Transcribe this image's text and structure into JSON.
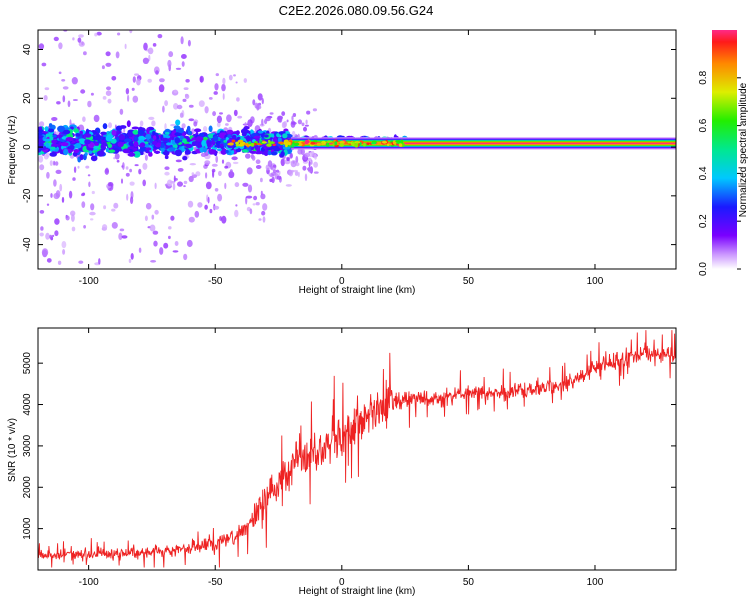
{
  "title": "C2E2.2026.080.09.56.G24",
  "colors": {
    "snr_line": "#ee2222",
    "band_core": "#ff2a6a",
    "axis": "#000000"
  },
  "chart_data": [
    {
      "type": "heatmap",
      "xlabel": "Height of straight line (km)",
      "ylabel": "Frequency (Hz)",
      "xlim": [
        -120,
        132
      ],
      "ylim": [
        -50,
        48
      ],
      "xticks": [
        -100,
        -50,
        0,
        50,
        100
      ],
      "yticks": [
        -40,
        -20,
        0,
        20,
        40
      ],
      "xtick_labels": [
        "-100",
        "-50",
        "0",
        "50",
        "100"
      ],
      "ytick_labels": [
        "-40",
        "-20",
        "0",
        "20",
        "40"
      ],
      "band_center_hz": 1.5,
      "band_halfwidth_hz": 2,
      "note": "Spectral band narrows and stabilizes near 1.5 Hz above ~-20 km; broad noisy scatter below."
    },
    {
      "type": "colorbar",
      "label": "Normalized spectral amplitude",
      "range": [
        0,
        1
      ],
      "ticks": [
        0.0,
        0.2,
        0.4,
        0.6,
        0.8
      ],
      "tick_labels": [
        "0.0",
        "0.2",
        "0.4",
        "0.6",
        "0.8"
      ]
    },
    {
      "type": "line",
      "xlabel": "Height of straight line (km)",
      "ylabel": "SNR (10 * v/v)",
      "xlim": [
        -120,
        132
      ],
      "ylim": [
        0,
        5850
      ],
      "xticks": [
        -100,
        -50,
        0,
        50,
        100
      ],
      "yticks": [
        1000,
        2000,
        3000,
        4000,
        5000
      ],
      "xtick_labels": [
        "-100",
        "-50",
        "0",
        "50",
        "100"
      ],
      "ytick_labels": [
        "1000",
        "2000",
        "3000",
        "4000",
        "5000"
      ],
      "trend_x": [
        -120,
        -90,
        -70,
        -50,
        -40,
        -30,
        -20,
        -10,
        0,
        10,
        20,
        25,
        40,
        50,
        60,
        80,
        90,
        100,
        110,
        120,
        132
      ],
      "trend_y": [
        350,
        400,
        450,
        650,
        900,
        1700,
        2500,
        2800,
        3300,
        3700,
        4000,
        4150,
        4150,
        4300,
        4250,
        4400,
        4500,
        4900,
        5100,
        5250,
        5200
      ]
    }
  ]
}
